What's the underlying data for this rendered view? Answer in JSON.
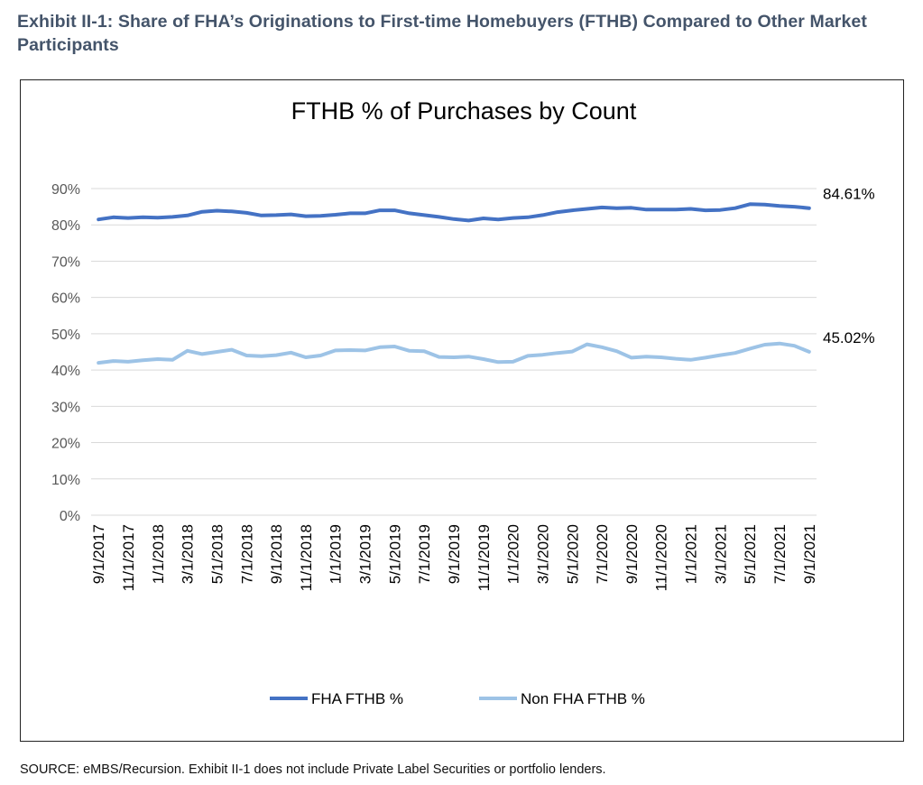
{
  "exhibit": {
    "title": "Exhibit II-1: Share of FHA’s Originations to First-time Homebuyers (FTHB) Compared to Other Market Participants",
    "source": "SOURCE: eMBS/Recursion. Exhibit II-1 does not include Private Label Securities or portfolio lenders."
  },
  "colors": {
    "fha": "#4472c4",
    "nonfha": "#9dc3e6",
    "grid": "#d9d9d9",
    "axis_text": "#595959"
  },
  "chart_data": {
    "type": "line",
    "title": "FTHB % of Purchases by Count",
    "xlabel": "",
    "ylabel": "",
    "ylim": [
      0,
      90
    ],
    "yticks": [
      "0%",
      "10%",
      "20%",
      "30%",
      "40%",
      "50%",
      "60%",
      "70%",
      "80%",
      "90%"
    ],
    "grid": true,
    "legend": "bottom",
    "x": [
      "9/1/2017",
      "10/1/2017",
      "11/1/2017",
      "12/1/2017",
      "1/1/2018",
      "2/1/2018",
      "3/1/2018",
      "4/1/2018",
      "5/1/2018",
      "6/1/2018",
      "7/1/2018",
      "8/1/2018",
      "9/1/2018",
      "10/1/2018",
      "11/1/2018",
      "12/1/2018",
      "1/1/2019",
      "2/1/2019",
      "3/1/2019",
      "4/1/2019",
      "5/1/2019",
      "6/1/2019",
      "7/1/2019",
      "8/1/2019",
      "9/1/2019",
      "10/1/2019",
      "11/1/2019",
      "12/1/2019",
      "1/1/2020",
      "2/1/2020",
      "3/1/2020",
      "4/1/2020",
      "5/1/2020",
      "6/1/2020",
      "7/1/2020",
      "8/1/2020",
      "9/1/2020",
      "10/1/2020",
      "11/1/2020",
      "12/1/2020",
      "1/1/2021",
      "2/1/2021",
      "3/1/2021",
      "4/1/2021",
      "5/1/2021",
      "6/1/2021",
      "7/1/2021",
      "8/1/2021",
      "9/1/2021"
    ],
    "x_tick_labels": [
      "9/1/2017",
      "11/1/2017",
      "1/1/2018",
      "3/1/2018",
      "5/1/2018",
      "7/1/2018",
      "9/1/2018",
      "11/1/2018",
      "1/1/2019",
      "3/1/2019",
      "5/1/2019",
      "7/1/2019",
      "9/1/2019",
      "11/1/2019",
      "1/1/2020",
      "3/1/2020",
      "5/1/2020",
      "7/1/2020",
      "9/1/2020",
      "11/1/2020",
      "1/1/2021",
      "3/1/2021",
      "5/1/2021",
      "7/1/2021",
      "9/1/2021"
    ],
    "series": [
      {
        "name": "FHA FTHB %",
        "end_label": "84.61%",
        "values": [
          81.5,
          82.1,
          81.9,
          82.1,
          82.0,
          82.2,
          82.6,
          83.6,
          83.9,
          83.7,
          83.3,
          82.6,
          82.7,
          82.9,
          82.4,
          82.5,
          82.8,
          83.2,
          83.2,
          84.0,
          84.0,
          83.2,
          82.7,
          82.2,
          81.6,
          81.2,
          81.8,
          81.5,
          81.9,
          82.1,
          82.7,
          83.5,
          84.0,
          84.4,
          84.8,
          84.6,
          84.7,
          84.2,
          84.2,
          84.2,
          84.4,
          84.0,
          84.1,
          84.6,
          85.7,
          85.6,
          85.2,
          85.0,
          84.61
        ]
      },
      {
        "name": "Non FHA FTHB %",
        "end_label": "45.02%",
        "values": [
          42.0,
          42.5,
          42.3,
          42.7,
          43.0,
          42.8,
          45.3,
          44.4,
          45.0,
          45.6,
          44.0,
          43.8,
          44.1,
          44.8,
          43.5,
          44.0,
          45.4,
          45.5,
          45.4,
          46.3,
          46.5,
          45.3,
          45.2,
          43.6,
          43.5,
          43.7,
          43.0,
          42.2,
          42.3,
          43.9,
          44.2,
          44.7,
          45.1,
          47.1,
          46.3,
          45.2,
          43.4,
          43.7,
          43.5,
          43.1,
          42.8,
          43.4,
          44.1,
          44.7,
          45.9,
          47.0,
          47.3,
          46.7,
          45.02
        ]
      }
    ]
  }
}
